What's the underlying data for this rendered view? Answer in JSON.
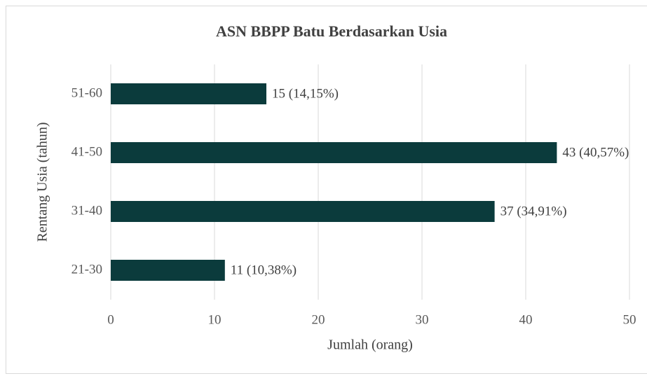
{
  "chart_data": {
    "type": "bar",
    "orientation": "horizontal",
    "title": "ASN BBPP Batu Berdasarkan Usia",
    "x_label": "Jumlah (orang)",
    "y_label": "Rentang Usia (tahun)",
    "categories": [
      "51-60",
      "41-50",
      "31-40",
      "21-30"
    ],
    "values": [
      15,
      43,
      37,
      11
    ],
    "value_labels": [
      "15 (14,15%)",
      "43 (40,57%)",
      "37 (34,91%)",
      "11 (10,38%)"
    ],
    "color": "#0b3b3c",
    "xlim": [
      0,
      50
    ],
    "xticks": [
      0,
      10,
      20,
      30,
      40,
      50
    ],
    "grid": true
  }
}
